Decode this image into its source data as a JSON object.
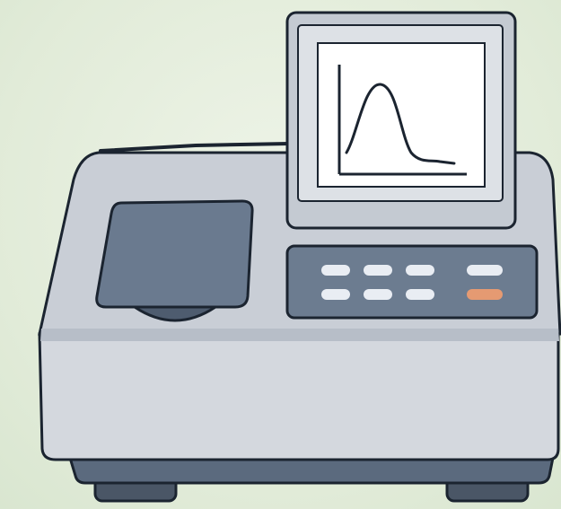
{
  "illustration": {
    "subject": "spectrophotometer",
    "parts": {
      "screen": {
        "plot_icon": "peak-curve-icon"
      },
      "sample_lid": {
        "icon": "sample-compartment-lid"
      },
      "keypad": {
        "button_rows": [
          [
            "button",
            "button",
            "button",
            "button"
          ],
          [
            "button",
            "button",
            "button",
            "button-orange"
          ]
        ]
      }
    },
    "colors": {
      "background": "#e3eddc",
      "body": "#d3d7dd",
      "body_dark": "#9aa3b0",
      "base": "#5b6a7e",
      "feet": "#4a5666",
      "lid": "#6a7a8f",
      "panel": "#6c7c90",
      "key": "#e9edf3",
      "key_accent": "#e59a72",
      "outline": "#1b2430",
      "screen_bezel": "#cdd3da",
      "screen_inner": "#ffffff",
      "curve": "#1b2430"
    }
  }
}
